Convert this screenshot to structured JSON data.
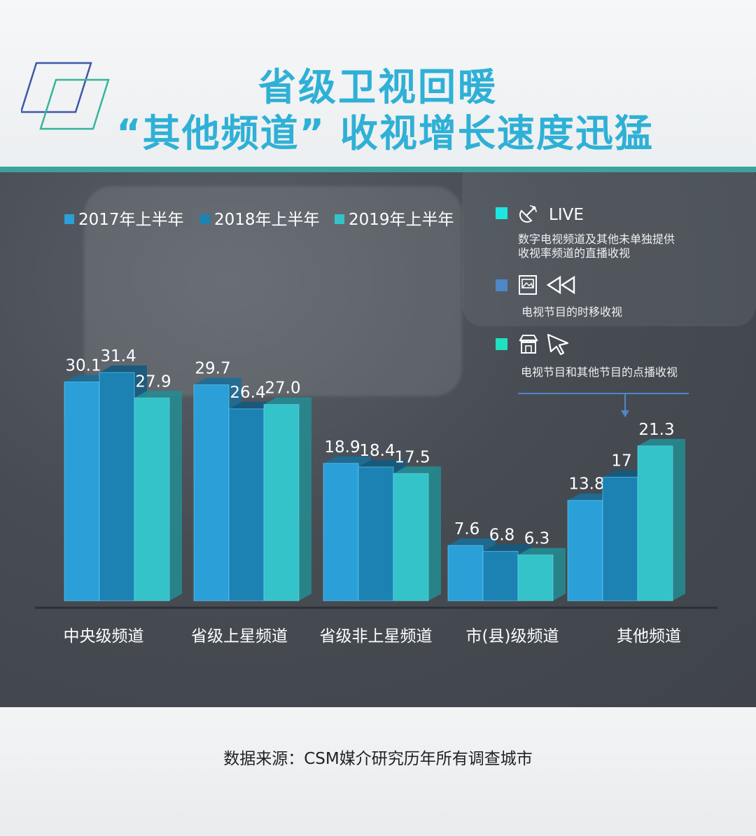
{
  "title": {
    "line1": "省级卫视回暖",
    "line2": "“其他频道” 收视增长速度迅猛"
  },
  "legend": [
    {
      "label": "2017年上半年",
      "color": "#2a9fd8"
    },
    {
      "label": "2018年上半年",
      "color": "#1c82b4"
    },
    {
      "label": "2019年上半年",
      "color": "#33c3c8"
    }
  ],
  "info": {
    "live": {
      "title": "LIVE",
      "text1": "数字电视频道及其他未单独提供",
      "text2": "收视率频道的直播收视",
      "color": "#1de6e0",
      "icons": [
        "satellite-icon"
      ]
    },
    "timeshift": {
      "text": "电视节目的时移收视",
      "color": "#4f86c6",
      "icons": [
        "image-icon",
        "rewind-icon"
      ]
    },
    "vod": {
      "text": "电视节目和其他节目的点播收视",
      "color": "#20e0c0",
      "icons": [
        "store-icon",
        "cursor-icon"
      ]
    }
  },
  "chart_data": {
    "type": "bar",
    "categories": [
      "中央级频道",
      "省级上星频道",
      "省级非上星频道",
      "市(县)级频道",
      "其他频道"
    ],
    "series": [
      {
        "name": "2017年上半年",
        "values": [
          30.1,
          29.7,
          18.9,
          7.6,
          13.8
        ],
        "labels": [
          "30.1",
          "29.7",
          "18.9",
          "7.6",
          "13.8"
        ]
      },
      {
        "name": "2018年上半年",
        "values": [
          31.4,
          26.4,
          18.4,
          6.8,
          17
        ],
        "labels": [
          "31.4",
          "26.4",
          "18.4",
          "6.8",
          "17"
        ]
      },
      {
        "name": "2019年上半年",
        "values": [
          27.9,
          27.0,
          17.5,
          6.3,
          21.3
        ],
        "labels": [
          "27.9",
          "27.0",
          "17.5",
          "6.3",
          "21.3"
        ]
      }
    ],
    "colors": [
      "#2a9fd8",
      "#1c82b4",
      "#33c3c8"
    ],
    "ylim": [
      0,
      31.4
    ],
    "grid": false,
    "legend_position": "top-left"
  },
  "footer": {
    "source": "数据来源：CSM媒介研究历年所有调查城市"
  }
}
